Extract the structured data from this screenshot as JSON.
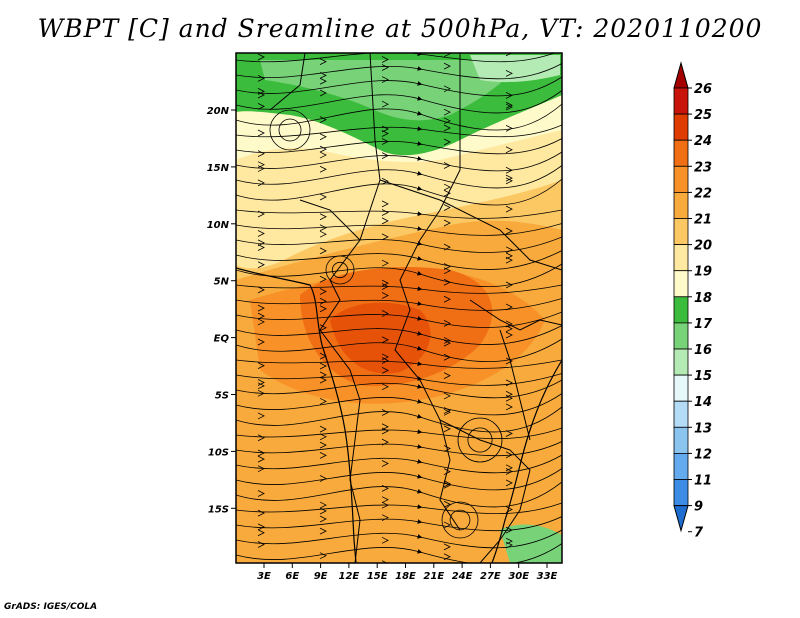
{
  "title": "WBPT [C] and Sreamline at 500hPa, VT: 2020110200",
  "credit": "GrADS: IGES/COLA",
  "lat_ticks": [
    "20N",
    "15N",
    "10N",
    "5N",
    "EQ",
    "5S",
    "10S",
    "15S"
  ],
  "lon_ticks": [
    "3E",
    "6E",
    "9E",
    "12E",
    "15E",
    "18E",
    "21E",
    "24E",
    "27E",
    "30E",
    "33E"
  ],
  "colorbar": {
    "levels": [
      "26",
      "25",
      "24",
      "23",
      "22",
      "21",
      "20",
      "19",
      "18",
      "17",
      "16",
      "15",
      "14",
      "13",
      "12",
      "11",
      "9",
      "7"
    ],
    "colors": [
      "#a50000",
      "#c8140a",
      "#e03c00",
      "#f06e14",
      "#f89228",
      "#f8aa3c",
      "#fcc864",
      "#ffe8a0",
      "#fffaca",
      "#3cbc3c",
      "#78d278",
      "#b4eab4",
      "#e6f8fa",
      "#b4dcf6",
      "#8cc4f0",
      "#64aaee",
      "#3c8ce6",
      "#1e6ed2"
    ]
  }
}
